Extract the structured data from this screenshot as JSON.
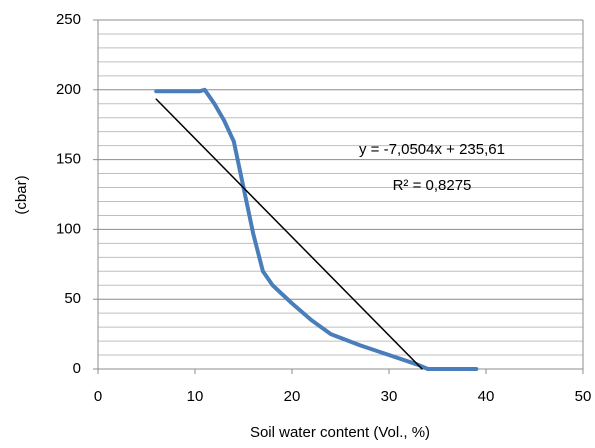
{
  "chart_data": {
    "type": "line",
    "x_label": "Soil water content (Vol., %)",
    "y_label": "(cbar)",
    "annotations": [
      "y = -7,0504x + 235,61",
      "R² = 0,8275"
    ],
    "series": [
      {
        "color": "#4a7ebb",
        "x": [
          6,
          10.5,
          11,
          12,
          13,
          14,
          15,
          16,
          17,
          18,
          20,
          22,
          24,
          27,
          30,
          33,
          34,
          36,
          39
        ],
        "values": [
          199,
          199,
          200,
          190,
          178,
          163,
          130,
          97,
          70,
          60,
          47,
          35,
          25,
          17,
          10,
          3,
          0,
          0,
          0
        ]
      },
      {
        "color": "#000000",
        "x": [
          6,
          33.4
        ],
        "values": [
          193.3,
          0.1
        ]
      }
    ],
    "xlim": [
      0,
      50
    ],
    "xticks": [
      0,
      10,
      20,
      30,
      40,
      50
    ],
    "ylim": [
      0,
      250
    ],
    "yticks": [
      0,
      50,
      100,
      150,
      200,
      250
    ],
    "y_minor_grid": [
      10,
      20,
      30,
      40,
      60,
      70,
      80,
      90,
      110,
      120,
      130,
      140,
      160,
      170,
      180,
      190,
      210,
      220,
      230,
      240
    ],
    "grid": true
  }
}
